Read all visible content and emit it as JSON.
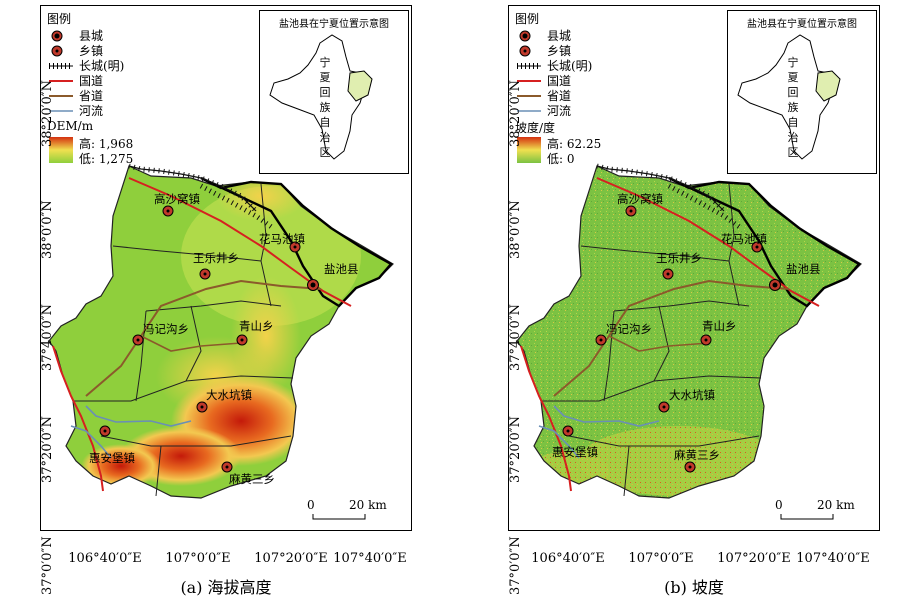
{
  "panel_a": {
    "caption": "(a) 海拔高度",
    "legend": {
      "title": "图例",
      "items": [
        {
          "symbol": "county-icon",
          "label": "县城"
        },
        {
          "symbol": "town-icon",
          "label": "乡镇"
        },
        {
          "symbol": "wall-icon",
          "label": "长城(明)"
        },
        {
          "symbol": "national-road-icon",
          "label": "国道"
        },
        {
          "symbol": "provincial-road-icon",
          "label": "省道"
        },
        {
          "symbol": "river-icon",
          "label": "河流"
        }
      ],
      "ramp_title": "DEM/m",
      "high": "高: 1,968",
      "low": "低: 1,275"
    },
    "inset": {
      "title": "盐池县在宁夏位置示意图",
      "region_label": "宁夏回族自治区"
    },
    "places": [
      "高沙窝镇",
      "花马池镇",
      "王乐井乡",
      "盐池县",
      "冯记沟乡",
      "青山乡",
      "大水坑镇",
      "惠安堡镇",
      "麻黄三乡"
    ],
    "scale": {
      "zero": "0",
      "distance": "20 km"
    },
    "lat_ticks": [
      "38°20′0″N",
      "38°0′0″N",
      "37°40′0″N",
      "37°20′0″N",
      "37°0′0″N"
    ],
    "lon_ticks": [
      "106°40′0″E",
      "107°0′0″E",
      "107°20′0″E",
      "107°40′0″E"
    ]
  },
  "panel_b": {
    "caption": "(b) 坡度",
    "legend": {
      "title": "图例",
      "items": [
        {
          "symbol": "county-icon",
          "label": "县城"
        },
        {
          "symbol": "town-icon",
          "label": "乡镇"
        },
        {
          "symbol": "wall-icon",
          "label": "长城(明)"
        },
        {
          "symbol": "national-road-icon",
          "label": "国道"
        },
        {
          "symbol": "provincial-road-icon",
          "label": "省道"
        },
        {
          "symbol": "river-icon",
          "label": "河流"
        }
      ],
      "ramp_title": "坡度/度",
      "high": "高: 62.25",
      "low": "低: 0"
    },
    "inset": {
      "title": "盐池县在宁夏位置示意图",
      "region_label": "宁夏回族自治区"
    },
    "places": [
      "高沙窝镇",
      "花马池镇",
      "王乐井乡",
      "盐池县",
      "冯记沟乡",
      "青山乡",
      "大水坑镇",
      "惠安堡镇",
      "麻黄三乡"
    ],
    "scale": {
      "zero": "0",
      "distance": "20 km"
    },
    "lat_ticks": [
      "38°20′0″N",
      "38°0′0″N",
      "37°40′0″N",
      "37°20′0″N",
      "37°0′0″N"
    ],
    "lon_ticks": [
      "106°40′0″E",
      "107°0′0″E",
      "107°20′0″E",
      "107°40′0″E"
    ]
  },
  "colors": {
    "national_road": "#d62020",
    "provincial_road": "#8b5a2b",
    "river": "#6a8fb5",
    "dem_low": "#8fcf3c",
    "dem_mid": "#f0e050",
    "dem_high": "#d43010",
    "slope_base": "#7cc242",
    "town_fill": "#c0392b"
  }
}
